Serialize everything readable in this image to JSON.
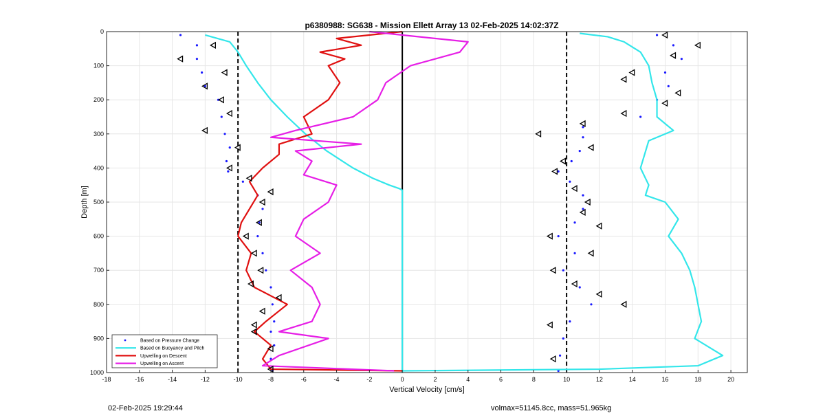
{
  "footer": {
    "timestamp": "02-Feb-2025 19:29:44",
    "info": "volmax=51145.8cc, mass=51.965kg"
  },
  "colors": {
    "pressure": "#1a1aff",
    "buoyancy": "#33e6ea",
    "descent": "#e01010",
    "ascent": "#e61ee6",
    "marker": "#000000",
    "grid": "#e6e6e6"
  },
  "chart_data": {
    "type": "line",
    "title": "p6380988: SG638 - Mission Ellett Array 13 02-Feb-2025 14:02:37Z",
    "xlabel": "Vertical Velocity [cm/s]",
    "ylabel": "Depth [m]",
    "xlim": [
      -18,
      21
    ],
    "ylim": [
      0,
      1000
    ],
    "y_reversed": true,
    "grid": true,
    "xticks": [
      -18,
      -16,
      -14,
      -12,
      -10,
      -8,
      -6,
      -4,
      -2,
      0,
      2,
      4,
      6,
      8,
      10,
      12,
      14,
      16,
      18,
      20
    ],
    "yticks": [
      0,
      100,
      200,
      300,
      400,
      500,
      600,
      700,
      800,
      900,
      1000
    ],
    "reference_lines": [
      {
        "x": -10,
        "style": "dashed"
      },
      {
        "x": 10,
        "style": "dashed"
      },
      {
        "x": 0,
        "style": "solid"
      }
    ],
    "legend": {
      "location": "bottom-left",
      "entries": [
        "Based on Pressure Change",
        "Based on Buoyancy and Pitch",
        "Upwelling on Descent",
        "Upwelling on Ascent"
      ]
    },
    "series": [
      {
        "name": "Based on Pressure Change",
        "style": "dots",
        "segments": [
          {
            "depth": [
              10,
              40,
              80,
              120,
              160,
              200,
              250,
              300,
              340,
              380,
              410,
              440,
              480,
              520,
              560,
              600,
              650,
              700,
              750,
              800,
              850,
              880,
              920,
              960,
              995
            ],
            "velocity": [
              -13.5,
              -12.5,
              -12.5,
              -12.2,
              -12.0,
              -11.2,
              -11.0,
              -10.8,
              -10.5,
              -10.7,
              -10.6,
              -9.7,
              -8.8,
              -8.5,
              -8.7,
              -8.8,
              -8.5,
              -8.3,
              -8.0,
              -7.9,
              -7.8,
              -8.0,
              -7.8,
              -8.0,
              -7.9
            ]
          },
          {
            "depth": [
              10,
              40,
              80,
              120,
              160,
              200,
              250,
              280,
              310,
              350,
              380,
              410,
              440,
              480,
              520,
              560,
              600,
              650,
              700,
              750,
              800,
              850,
              900,
              950,
              995
            ],
            "velocity": [
              15.5,
              16.5,
              17.0,
              16.0,
              16.2,
              15.5,
              14.5,
              11.0,
              11.0,
              10.8,
              10.3,
              9.5,
              10.2,
              11.0,
              11.0,
              10.5,
              9.5,
              10.5,
              9.8,
              10.8,
              11.5,
              10.2,
              9.8,
              9.6,
              9.5
            ]
          }
        ]
      },
      {
        "name": "Based on Buoyancy and Pitch",
        "style": "line",
        "segments": [
          {
            "depth": [
              10,
              30,
              60,
              100,
              150,
              200,
              250,
              300,
              350,
              400,
              430,
              450,
              460,
              465,
              600,
              800,
              1000
            ],
            "velocity": [
              -12.0,
              -10.5,
              -10.0,
              -9.5,
              -8.8,
              -8.0,
              -7.0,
              -5.9,
              -4.6,
              -3.0,
              -1.8,
              -0.8,
              -0.2,
              0.0,
              0.0,
              0.0,
              0.0
            ]
          },
          {
            "depth": [
              5,
              15,
              30,
              60,
              100,
              150,
              200,
              250,
              290,
              320,
              400,
              450,
              480,
              500,
              550,
              600,
              650,
              700,
              750,
              800,
              850,
              900,
              950,
              980,
              990,
              995
            ],
            "velocity": [
              10.8,
              12.5,
              13.5,
              14.5,
              15.0,
              15.2,
              15.5,
              15.5,
              16.5,
              15.0,
              14.5,
              15.0,
              14.8,
              16.0,
              16.8,
              16.2,
              17.0,
              17.5,
              17.8,
              18.0,
              18.2,
              17.8,
              19.5,
              18.0,
              12.0,
              0.0
            ]
          }
        ]
      },
      {
        "name": "Upwelling on Descent",
        "style": "line",
        "segments": [
          {
            "depth": [
              0,
              20,
              40,
              60,
              80,
              100,
              150,
              200,
              250,
              300,
              330,
              360,
              400,
              440,
              480,
              520,
              560,
              600,
              650,
              700,
              750,
              800,
              850,
              880,
              920,
              960,
              990,
              995
            ],
            "velocity": [
              0.0,
              -4.0,
              -2.5,
              -5.0,
              -3.5,
              -4.5,
              -3.8,
              -4.5,
              -6.0,
              -5.5,
              -7.5,
              -7.5,
              -8.5,
              -9.3,
              -8.8,
              -9.3,
              -9.8,
              -10.0,
              -9.2,
              -9.5,
              -9.0,
              -7.0,
              -8.3,
              -9.0,
              -8.0,
              -8.5,
              -8.0,
              0.0
            ]
          }
        ]
      },
      {
        "name": "Upwelling on Ascent",
        "style": "line",
        "segments": [
          {
            "depth": [
              0,
              30,
              60,
              100,
              150,
              200,
              250,
              290,
              310,
              330,
              350,
              380,
              420,
              450,
              500,
              550,
              600,
              650,
              700,
              750,
              800,
              850,
              880,
              900,
              950,
              980,
              995
            ],
            "velocity": [
              -2.0,
              4.0,
              3.5,
              0.5,
              -1.0,
              -1.5,
              -3.0,
              -6.5,
              -8.0,
              -2.5,
              -6.5,
              -5.5,
              -6.0,
              -4.0,
              -4.5,
              -6.0,
              -6.5,
              -5.0,
              -6.8,
              -5.5,
              -5.0,
              -5.5,
              -7.5,
              -4.5,
              -7.5,
              -8.5,
              -0.5
            ]
          }
        ]
      },
      {
        "name": "markers",
        "style": "triangles",
        "segments": [
          {
            "depth": [
              40,
              80,
              120,
              160,
              200,
              240,
              290,
              340,
              400,
              430,
              470,
              500,
              560,
              600,
              650,
              700,
              740,
              780,
              820,
              860,
              880,
              930,
              990
            ],
            "velocity": [
              -11.5,
              -13.5,
              -10.8,
              -12.0,
              -11.0,
              -10.5,
              -12.0,
              -10.0,
              -10.5,
              -9.3,
              -8.0,
              -8.5,
              -8.7,
              -9.5,
              -9.0,
              -8.6,
              -9.2,
              -7.5,
              -8.5,
              -9.0,
              -9.0,
              -8.0,
              -8.0
            ]
          },
          {
            "depth": [
              10,
              40,
              70,
              120,
              140,
              180,
              210,
              240,
              270,
              300,
              340,
              380,
              410,
              460,
              500,
              530,
              570,
              600,
              650,
              700,
              740,
              770,
              800,
              860,
              960
            ],
            "velocity": [
              16.0,
              18.0,
              16.5,
              14.0,
              13.5,
              16.8,
              16.0,
              13.5,
              11.0,
              8.3,
              11.5,
              9.8,
              9.3,
              10.5,
              11.3,
              11.0,
              12.0,
              9.0,
              11.5,
              9.2,
              10.5,
              12.0,
              13.5,
              9.0,
              9.2
            ]
          }
        ]
      }
    ]
  }
}
